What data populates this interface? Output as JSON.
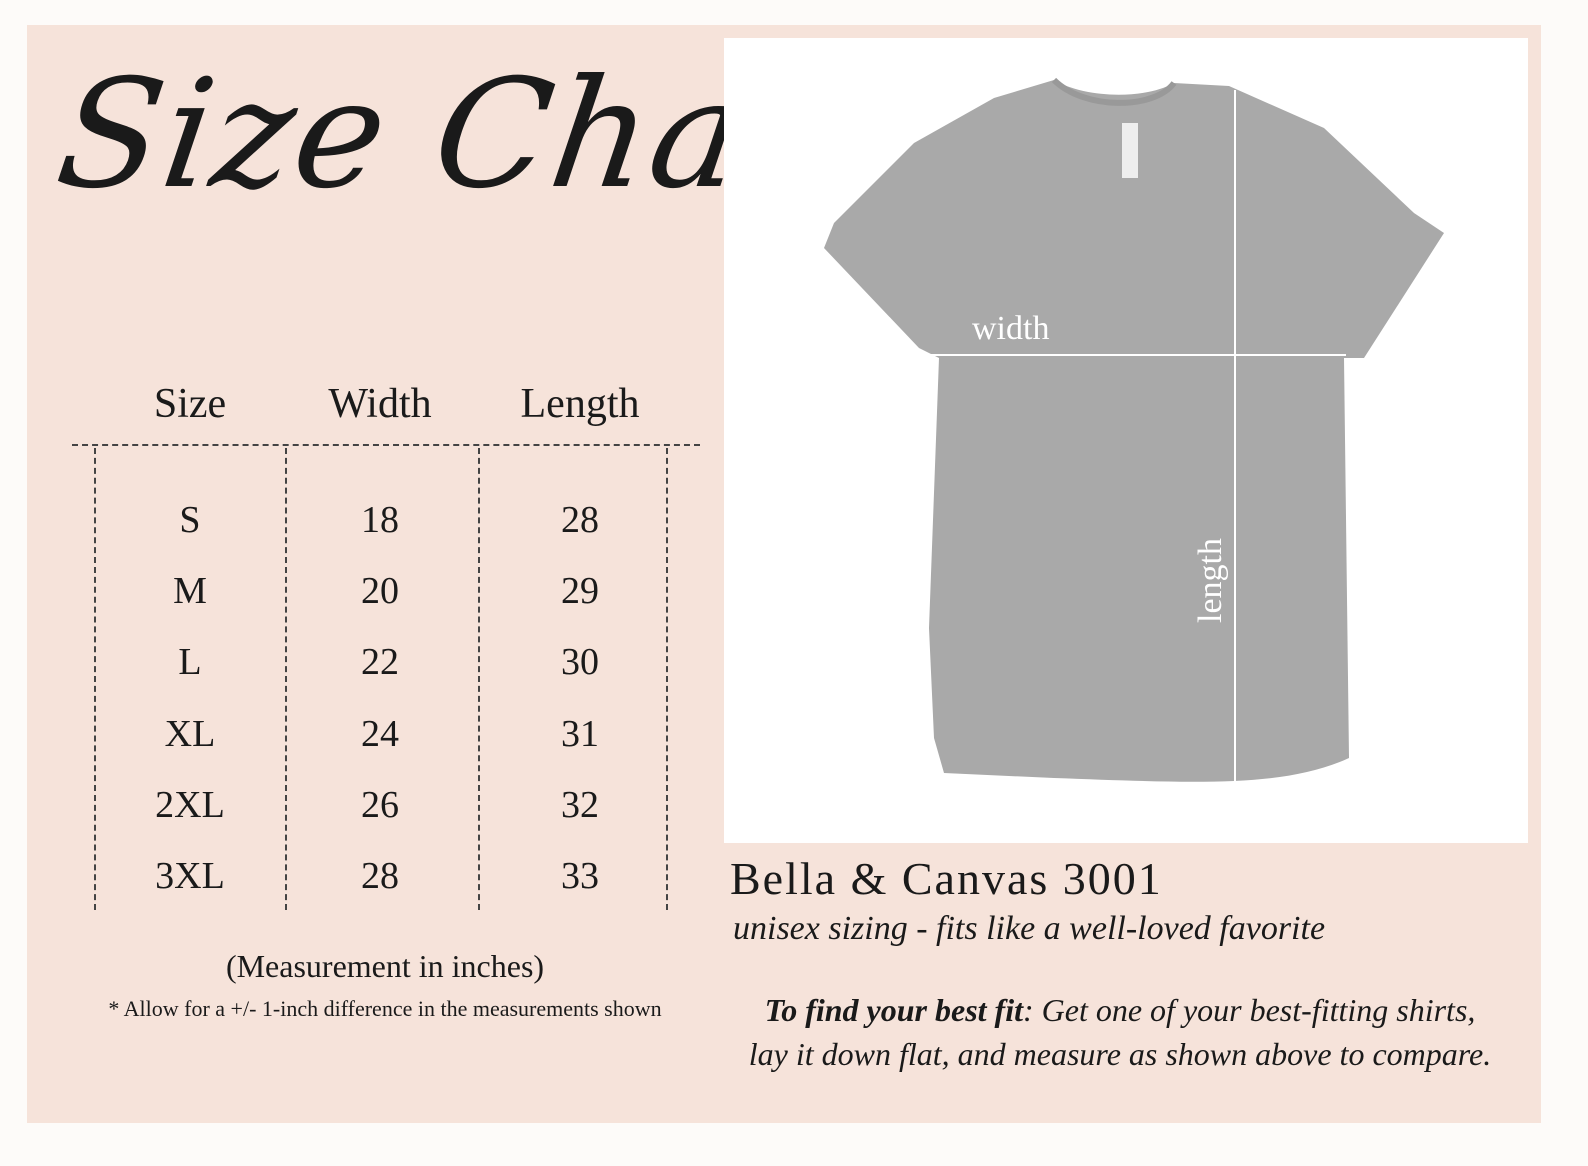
{
  "title": "Size Chart",
  "table": {
    "headers": [
      "Size",
      "Width",
      "Length"
    ],
    "rows": [
      [
        "S",
        "18",
        "28"
      ],
      [
        "M",
        "20",
        "29"
      ],
      [
        "L",
        "22",
        "30"
      ],
      [
        "XL",
        "24",
        "31"
      ],
      [
        "2XL",
        "26",
        "32"
      ],
      [
        "3XL",
        "28",
        "33"
      ]
    ]
  },
  "notes": {
    "unit": "(Measurement in inches)",
    "allowance": "* Allow for a +/- 1-inch difference in the measurements shown"
  },
  "diagram": {
    "width_label": "width",
    "length_label": "length",
    "shirt_color": "#a9a9a9"
  },
  "product": {
    "name": "Bella & Canvas 3001",
    "tagline": "unisex sizing - fits like a well-loved favorite",
    "fit_heading": "To find your best fit",
    "fit_text_1": ": Get one of your best-fitting shirts,",
    "fit_text_2": "lay it down flat, and measure as shown above to compare."
  },
  "colors": {
    "panel": "#f6e3da",
    "background": "#fdfbf9"
  }
}
